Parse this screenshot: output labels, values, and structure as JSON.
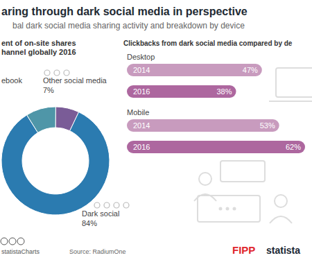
{
  "header": {
    "title": "aring through dark social media in perspective",
    "subtitle": "bal dark social media sharing activity and breakdown by device"
  },
  "chart_data": [
    {
      "type": "pie",
      "title": [
        "ent of on-site shares",
        "hannel globally 2016"
      ],
      "categories": [
        "ebook",
        "Other social media",
        "Dark social"
      ],
      "values": [
        9,
        7,
        84
      ],
      "value_labels": [
        null,
        "7%",
        "84%"
      ],
      "colors": [
        "#4f96a8",
        "#7a5c97",
        "#2b7bb0"
      ],
      "data_labels": true
    },
    {
      "type": "bar",
      "orientation": "horizontal",
      "title": "Clickbacks from dark social media compared by de",
      "categories": [
        "Desktop",
        "Mobile"
      ],
      "series": [
        {
          "name": "2014",
          "color": "#c89bbe",
          "values": [
            47,
            53
          ],
          "value_labels": [
            "47%",
            "53%"
          ]
        },
        {
          "name": "2016",
          "color": "#ad679f",
          "values": [
            38,
            62
          ],
          "value_labels": [
            "38%",
            "62%"
          ]
        }
      ],
      "data_labels": true,
      "tick_labels": false
    }
  ],
  "footer": {
    "credit": "statistaCharts",
    "source": "Source: RadiumOne",
    "logos": [
      "FIPP",
      "statista"
    ]
  }
}
